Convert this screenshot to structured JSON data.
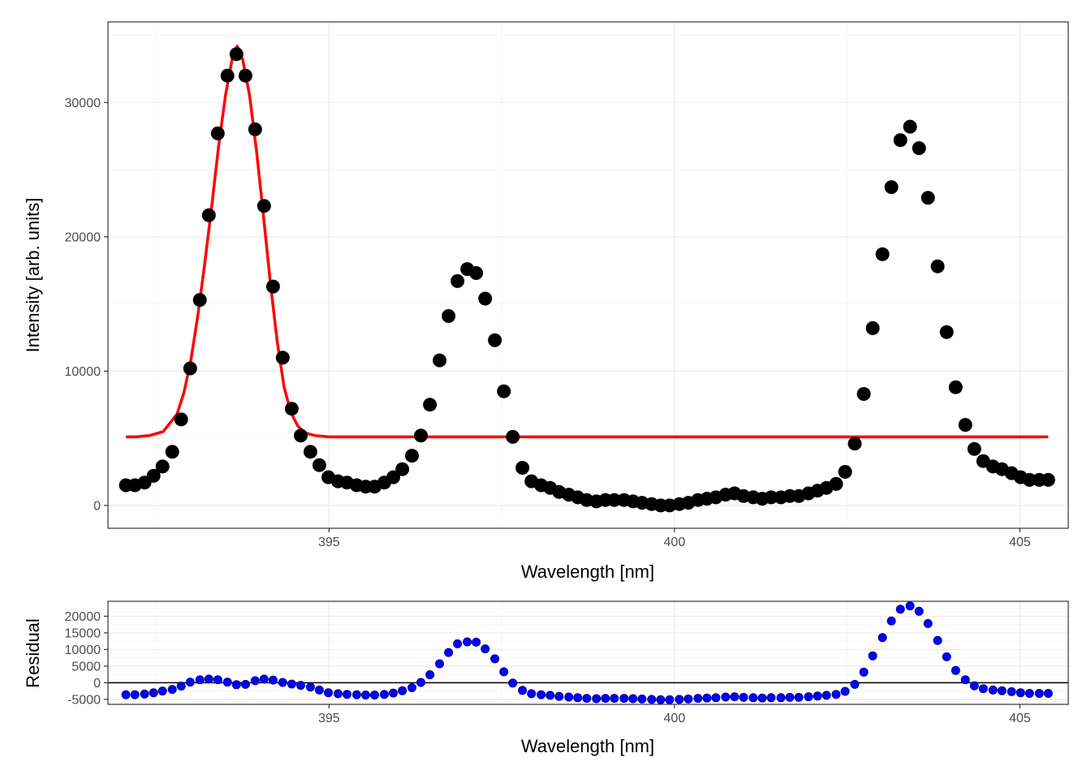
{
  "colors": {
    "data_points": "#000000",
    "fit_line": "#ff0000",
    "residual_points": "#0000ff",
    "residual_outline": "#00008b",
    "grid_major": "#ebebeb",
    "grid_minor": "#f5f5f5",
    "panel_border": "#333333",
    "zero_line": "#000000"
  },
  "chart_data": [
    {
      "type": "scatter",
      "title": "",
      "xlabel": "Wavelength [nm]",
      "ylabel": "Intensity [arb. units]",
      "xlim": [
        391.8,
        405.7
      ],
      "ylim": [
        -1700,
        36000
      ],
      "x_ticks": [
        395,
        400,
        405
      ],
      "y_ticks": [
        0,
        10000,
        20000,
        30000
      ],
      "x_tick_labels": [
        "395",
        "400",
        "405"
      ],
      "y_tick_labels": [
        "0",
        "10000",
        "20000",
        "30000"
      ],
      "grid": true,
      "legend": "none",
      "series": [
        {
          "kind": "points",
          "x": [
            392.06,
            392.19,
            392.33,
            392.46,
            392.59,
            392.73,
            392.86,
            392.99,
            393.13,
            393.26,
            393.39,
            393.53,
            393.66,
            393.79,
            393.93,
            394.06,
            394.19,
            394.33,
            394.46,
            394.59,
            394.73,
            394.86,
            394.99,
            395.13,
            395.26,
            395.4,
            395.53,
            395.66,
            395.8,
            395.93,
            396.06,
            396.2,
            396.33,
            396.46,
            396.6,
            396.73,
            396.86,
            397.0,
            397.13,
            397.26,
            397.4,
            397.53,
            397.66,
            397.8,
            397.93,
            398.07,
            398.2,
            398.33,
            398.47,
            398.6,
            398.73,
            398.87,
            399.0,
            399.13,
            399.27,
            399.4,
            399.53,
            399.67,
            399.8,
            399.93,
            400.07,
            400.2,
            400.34,
            400.47,
            400.6,
            400.74,
            400.87,
            401.0,
            401.14,
            401.27,
            401.4,
            401.54,
            401.67,
            401.8,
            401.94,
            402.07,
            402.2,
            402.34,
            402.47,
            402.61,
            402.74,
            402.87,
            403.01,
            403.14,
            403.27,
            403.41,
            403.54,
            403.67,
            403.81,
            403.94,
            404.07,
            404.21,
            404.34,
            404.47,
            404.61,
            404.74,
            404.88,
            405.01,
            405.14,
            405.28,
            405.41
          ],
          "y": [
            1500,
            1500,
            1700,
            2200,
            2900,
            4000,
            6400,
            10200,
            15300,
            21600,
            27700,
            32000,
            33600,
            32000,
            28000,
            22300,
            16300,
            11000,
            7200,
            5200,
            4000,
            3000,
            2100,
            1800,
            1700,
            1500,
            1400,
            1400,
            1700,
            2100,
            2700,
            3700,
            5200,
            7500,
            10800,
            14100,
            16700,
            17600,
            17300,
            15400,
            12300,
            8500,
            5100,
            2800,
            1800,
            1500,
            1300,
            1000,
            800,
            600,
            400,
            300,
            400,
            400,
            400,
            300,
            200,
            100,
            0,
            0,
            100,
            200,
            400,
            500,
            600,
            800,
            900,
            700,
            600,
            500,
            600,
            600,
            700,
            700,
            900,
            1100,
            1300,
            1600,
            2500,
            4600,
            8300,
            13200,
            18700,
            23700,
            27200,
            28200,
            26600,
            22900,
            17800,
            12900,
            8800,
            6000,
            4200,
            3300,
            2900,
            2700,
            2400,
            2100,
            1900,
            1900,
            1900
          ]
        },
        {
          "kind": "line",
          "x": [
            392.06,
            392.2,
            392.4,
            392.6,
            392.8,
            392.9,
            393.0,
            393.1,
            393.2,
            393.3,
            393.4,
            393.5,
            393.6,
            393.67,
            393.75,
            393.85,
            393.95,
            394.05,
            394.15,
            394.25,
            394.35,
            394.45,
            394.55,
            394.65,
            394.8,
            395.0,
            395.2,
            396,
            398,
            400,
            402,
            404,
            405.41
          ],
          "y": [
            5100,
            5100,
            5200,
            5500,
            6800,
            8400,
            10800,
            14100,
            18000,
            22200,
            26700,
            30500,
            33300,
            34200,
            33200,
            30500,
            26400,
            21600,
            16600,
            12200,
            8800,
            6900,
            5900,
            5400,
            5200,
            5100,
            5100,
            5100,
            5100,
            5100,
            5100,
            5100,
            5100
          ]
        }
      ]
    },
    {
      "type": "scatter",
      "title": "",
      "xlabel": "Wavelength [nm]",
      "ylabel": "Residual",
      "xlim": [
        391.8,
        405.7
      ],
      "ylim": [
        -6500,
        24500
      ],
      "x_ticks": [
        395,
        400,
        405
      ],
      "y_ticks": [
        -5000,
        0,
        5000,
        10000,
        15000,
        20000
      ],
      "x_tick_labels": [
        "395",
        "400",
        "405"
      ],
      "y_tick_labels": [
        "-5000",
        "0",
        "5000",
        "10000",
        "15000",
        "20000"
      ],
      "zero_line": 0,
      "grid": true,
      "legend": "none",
      "series": [
        {
          "kind": "points",
          "x": [
            392.06,
            392.19,
            392.33,
            392.46,
            392.59,
            392.73,
            392.86,
            392.99,
            393.13,
            393.26,
            393.39,
            393.53,
            393.66,
            393.79,
            393.93,
            394.06,
            394.19,
            394.33,
            394.46,
            394.59,
            394.73,
            394.86,
            394.99,
            395.13,
            395.26,
            395.4,
            395.53,
            395.66,
            395.8,
            395.93,
            396.06,
            396.2,
            396.33,
            396.46,
            396.6,
            396.73,
            396.86,
            397.0,
            397.13,
            397.26,
            397.4,
            397.53,
            397.66,
            397.8,
            397.93,
            398.07,
            398.2,
            398.33,
            398.47,
            398.6,
            398.73,
            398.87,
            399.0,
            399.13,
            399.27,
            399.4,
            399.53,
            399.67,
            399.8,
            399.93,
            400.07,
            400.2,
            400.34,
            400.47,
            400.6,
            400.74,
            400.87,
            401.0,
            401.14,
            401.27,
            401.4,
            401.54,
            401.67,
            401.8,
            401.94,
            402.07,
            402.2,
            402.34,
            402.47,
            402.61,
            402.74,
            402.87,
            403.01,
            403.14,
            403.27,
            403.41,
            403.54,
            403.67,
            403.81,
            403.94,
            404.07,
            404.21,
            404.34,
            404.47,
            404.61,
            404.74,
            404.88,
            405.01,
            405.14,
            405.28,
            405.41
          ],
          "y": [
            -3600,
            -3600,
            -3400,
            -3000,
            -2500,
            -2000,
            -1000,
            200,
            900,
            1100,
            900,
            200,
            -600,
            -500,
            600,
            1100,
            800,
            100,
            -400,
            -800,
            -1300,
            -2200,
            -3000,
            -3300,
            -3500,
            -3600,
            -3700,
            -3700,
            -3500,
            -3100,
            -2400,
            -1500,
            100,
            2400,
            5700,
            9100,
            11700,
            12300,
            12200,
            10200,
            7200,
            3300,
            -100,
            -2300,
            -3300,
            -3600,
            -3800,
            -4100,
            -4300,
            -4500,
            -4700,
            -4800,
            -4700,
            -4700,
            -4700,
            -4800,
            -4900,
            -5000,
            -5100,
            -5100,
            -5000,
            -4900,
            -4700,
            -4600,
            -4500,
            -4300,
            -4200,
            -4400,
            -4500,
            -4600,
            -4500,
            -4500,
            -4400,
            -4400,
            -4200,
            -4000,
            -3800,
            -3500,
            -2600,
            -500,
            3200,
            8100,
            13600,
            18600,
            22100,
            23100,
            21500,
            17800,
            12700,
            7800,
            3700,
            900,
            -900,
            -1800,
            -2200,
            -2400,
            -2700,
            -3000,
            -3200,
            -3200,
            -3200
          ]
        }
      ]
    }
  ]
}
